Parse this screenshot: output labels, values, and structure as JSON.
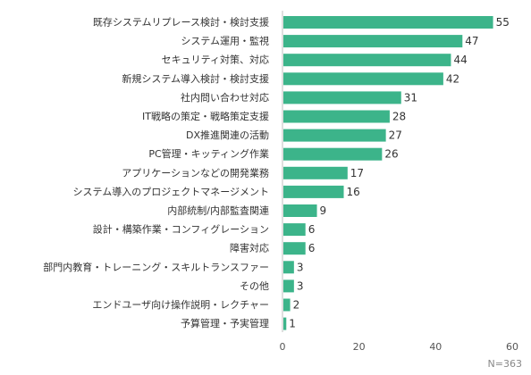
{
  "chart_data": {
    "type": "bar",
    "orientation": "horizontal",
    "categories": [
      "既存システムリプレース検討・検討支援",
      "システム運用・監視",
      "セキュリティ対策、対応",
      "新規システム導入検討・検討支援",
      "社内問い合わせ対応",
      "IT戦略の策定・戦略策定支援",
      "DX推進関連の活動",
      "PC管理・キッティング作業",
      "アプリケーションなどの開発業務",
      "システム導入のプロジェクトマネージメント",
      "内部統制/内部監査関連",
      "設計・構築作業・コンフィグレーション",
      "障害対応",
      "部門内教育・トレーニング・スキルトランスファー",
      "その他",
      "エンドユーザ向け操作説明・レクチャー",
      "予算管理・予実管理"
    ],
    "values": [
      55,
      47,
      44,
      42,
      31,
      28,
      27,
      26,
      17,
      16,
      9,
      6,
      6,
      3,
      3,
      2,
      1
    ],
    "xlim": [
      0,
      60
    ],
    "xticks": [
      0,
      20,
      40,
      60
    ],
    "color": "#3cb48a",
    "grid": false,
    "note": "N=363"
  }
}
